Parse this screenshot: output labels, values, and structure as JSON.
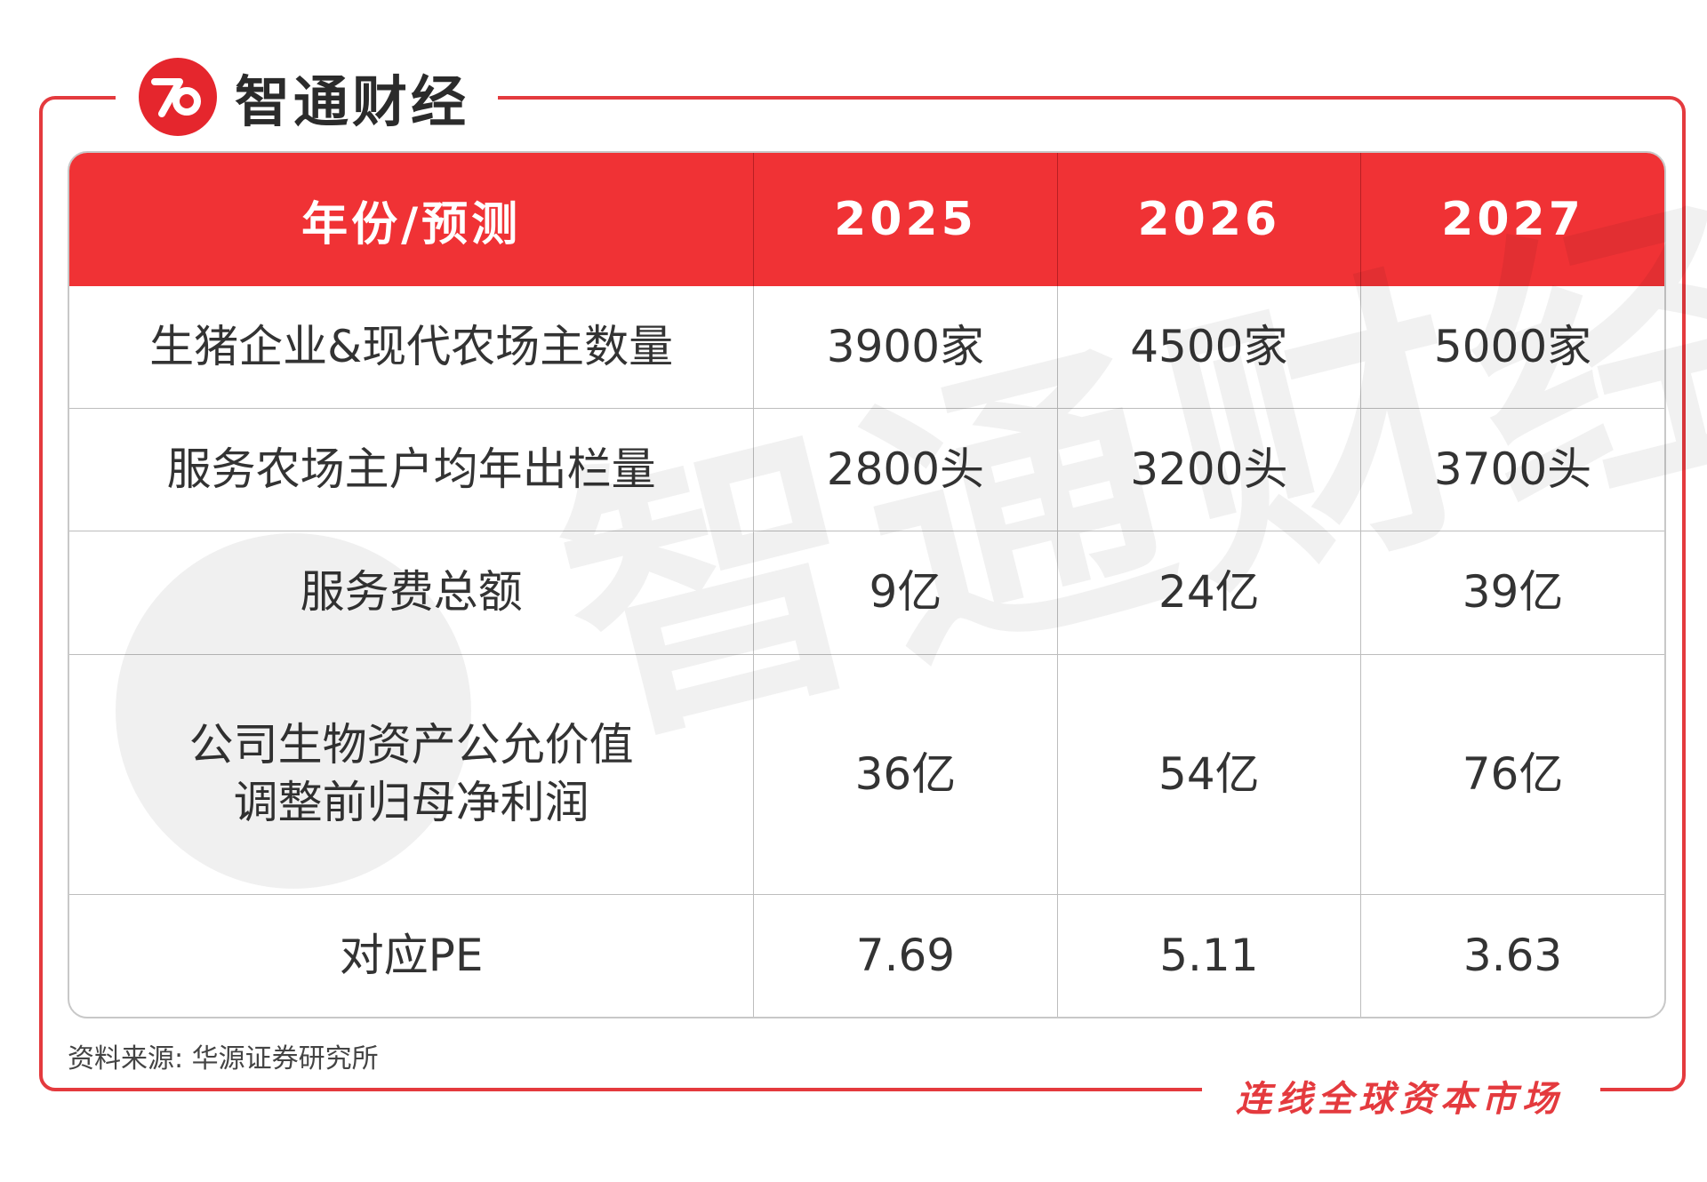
{
  "brand": {
    "name": "智通财经",
    "slogan": "连线全球资本市场",
    "accent_color": "#e43a3e",
    "header_color": "#f03235"
  },
  "chart_data": {
    "type": "table",
    "columns": [
      "年份/预测",
      "2025",
      "2026",
      "2027"
    ],
    "rows": [
      {
        "label": [
          "生猪企业&现代农场主数量"
        ],
        "values": [
          "3900家",
          "4500家",
          "5000家"
        ]
      },
      {
        "label": [
          "服务农场主户均年出栏量"
        ],
        "values": [
          "2800头",
          "3200头",
          "3700头"
        ]
      },
      {
        "label": [
          "服务费总额"
        ],
        "values": [
          "9亿",
          "24亿",
          "39亿"
        ]
      },
      {
        "label": [
          "公司生物资产公允价值",
          "调整前归母净利润"
        ],
        "values": [
          "36亿",
          "54亿",
          "76亿"
        ]
      },
      {
        "label": [
          "对应PE"
        ],
        "values": [
          "7.69",
          "5.11",
          "3.63"
        ]
      }
    ]
  },
  "footer": {
    "source": "资料来源: 华源证券研究所"
  }
}
